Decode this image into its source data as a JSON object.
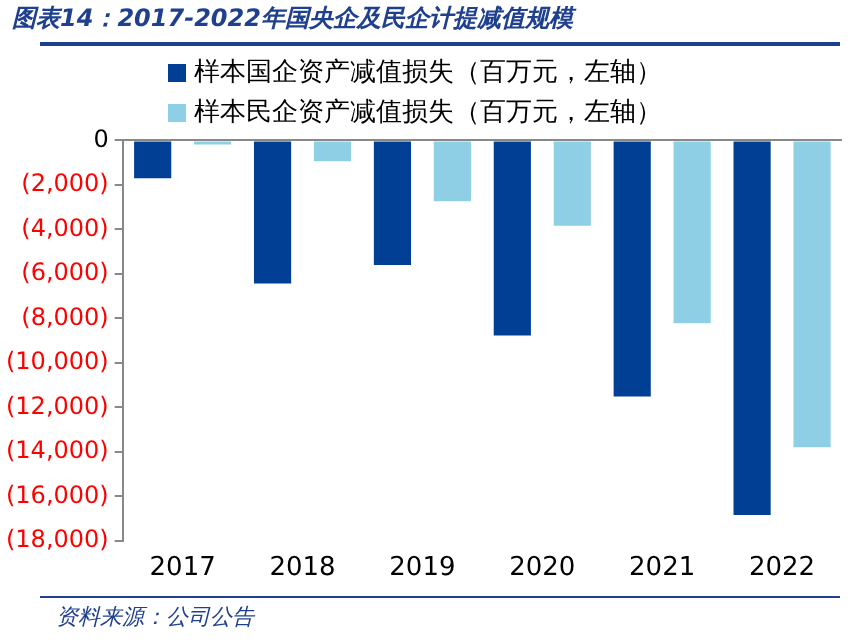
{
  "chart_data": {
    "type": "bar",
    "title": "图表14：2017-2022年国央企及民企计提减值规模",
    "categories": [
      "2017",
      "2018",
      "2019",
      "2020",
      "2021",
      "2022"
    ],
    "series": [
      {
        "name": "样本国企资产减值损失（百万元，左轴）",
        "color": "#003f93",
        "values": [
          -1700,
          -6430,
          -5600,
          -8770,
          -11510,
          -16840
        ]
      },
      {
        "name": "样本民企资产减值损失（百万元，左轴）",
        "color": "#8ecfe6",
        "values": [
          -180,
          -940,
          -2740,
          -3840,
          -8220,
          -13800
        ]
      }
    ],
    "ylim": [
      -18000,
      0
    ],
    "yticks": [
      {
        "value": 0,
        "label": "0"
      },
      {
        "value": -2000,
        "label": "(2,000)"
      },
      {
        "value": -4000,
        "label": "(4,000)"
      },
      {
        "value": -6000,
        "label": "(6,000)"
      },
      {
        "value": -8000,
        "label": "(8,000)"
      },
      {
        "value": -10000,
        "label": "(10,000)"
      },
      {
        "value": -12000,
        "label": "(12,000)"
      },
      {
        "value": -14000,
        "label": "(14,000)"
      },
      {
        "value": -16000,
        "label": "(16,000)"
      },
      {
        "value": -18000,
        "label": "(18,000)"
      }
    ],
    "grid": false,
    "legend": "top",
    "annotations": [
      "资料来源：公司公告"
    ]
  }
}
